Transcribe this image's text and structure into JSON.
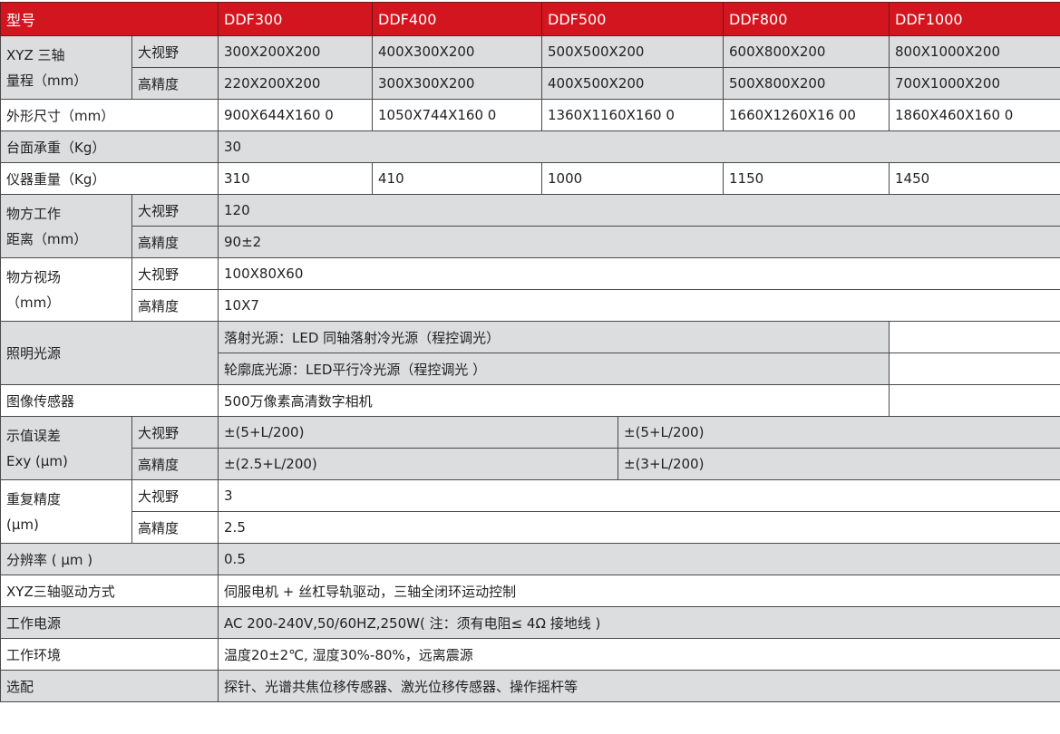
{
  "header": {
    "label": "型号",
    "models": [
      "DDF300",
      "DDF400",
      "DDF500",
      "DDF800",
      "DDF1000"
    ]
  },
  "colors": {
    "header_bg": "#d2151e",
    "gray_row": "#dcdddf",
    "border": "#4a4a4a"
  },
  "range": {
    "label1": "XYZ 三轴",
    "label2": "量程（mm）",
    "wide": {
      "label": "大视野",
      "values": [
        "300X200X200",
        "400X300X200",
        "500X500X200",
        "600X800X200",
        "800X1000X200"
      ]
    },
    "precise": {
      "label": "高精度",
      "values": [
        "220X200X200",
        "300X300X200",
        "400X500X200",
        "500X800X200",
        "700X1000X200"
      ]
    }
  },
  "size": {
    "label": "外形尺寸（mm）",
    "values": [
      "900X644X160 0",
      "1050X744X160 0",
      "1360X1160X160 0",
      "1660X1260X16 00",
      "1860X460X160 0"
    ]
  },
  "load": {
    "label": "台面承重（Kg）",
    "value": "30"
  },
  "weight": {
    "label": "仪器重量（Kg）",
    "values": [
      "310",
      "410",
      "1000",
      "1150",
      "1450"
    ]
  },
  "work_distance": {
    "label1": "物方工作",
    "label2": "距离（mm）",
    "wide": {
      "label": "大视野",
      "value": "120"
    },
    "precise": {
      "label": "高精度",
      "value": "90±2"
    }
  },
  "fov": {
    "label1": "物方视场",
    "label2": "（mm）",
    "wide": {
      "label": "大视野",
      "value": "100X80X60"
    },
    "precise": {
      "label": "高精度",
      "value": "10X7"
    }
  },
  "light": {
    "label": "照明光源",
    "values": [
      "落射光源：LED 同轴落射冷光源（程控调光）",
      "轮廓底光源：LED平行冷光源（程控调光 ）"
    ]
  },
  "sensor": {
    "label": "图像传感器",
    "value": "500万像素高清数字相机"
  },
  "error": {
    "label1": "示值误差",
    "label2": " Exy (μm)",
    "wide": {
      "label": "大视野",
      "a": "±(5+L/200)",
      "b": "±(5+L/200)"
    },
    "precise": {
      "label": "高精度",
      "a": "±(2.5+L/200)",
      "b": "±(3+L/200)"
    }
  },
  "repeat": {
    "label1": "重复精度",
    "label2": " (μm)",
    "wide": {
      "label": "大视野",
      "value": "3"
    },
    "precise": {
      "label": "高精度",
      "value": "2.5"
    }
  },
  "resolution": {
    "label": "分辨率 ( μm )",
    "value": "0.5"
  },
  "drive": {
    "label": "XYZ三轴驱动方式",
    "value": "伺服电机 + 丝杠导轨驱动，三轴全闭环运动控制"
  },
  "power": {
    "label": "工作电源",
    "value": "AC 200-240V,50/60HZ,250W( 注：须有电阻≤ 4Ω 接地线 )"
  },
  "env": {
    "label": "工作环境",
    "value": "温度20±2℃, 湿度30%-80%，远离震源"
  },
  "options": {
    "label": "选配",
    "value": "探针、光谱共焦位移传感器、激光位移传感器、操作摇杆等"
  }
}
